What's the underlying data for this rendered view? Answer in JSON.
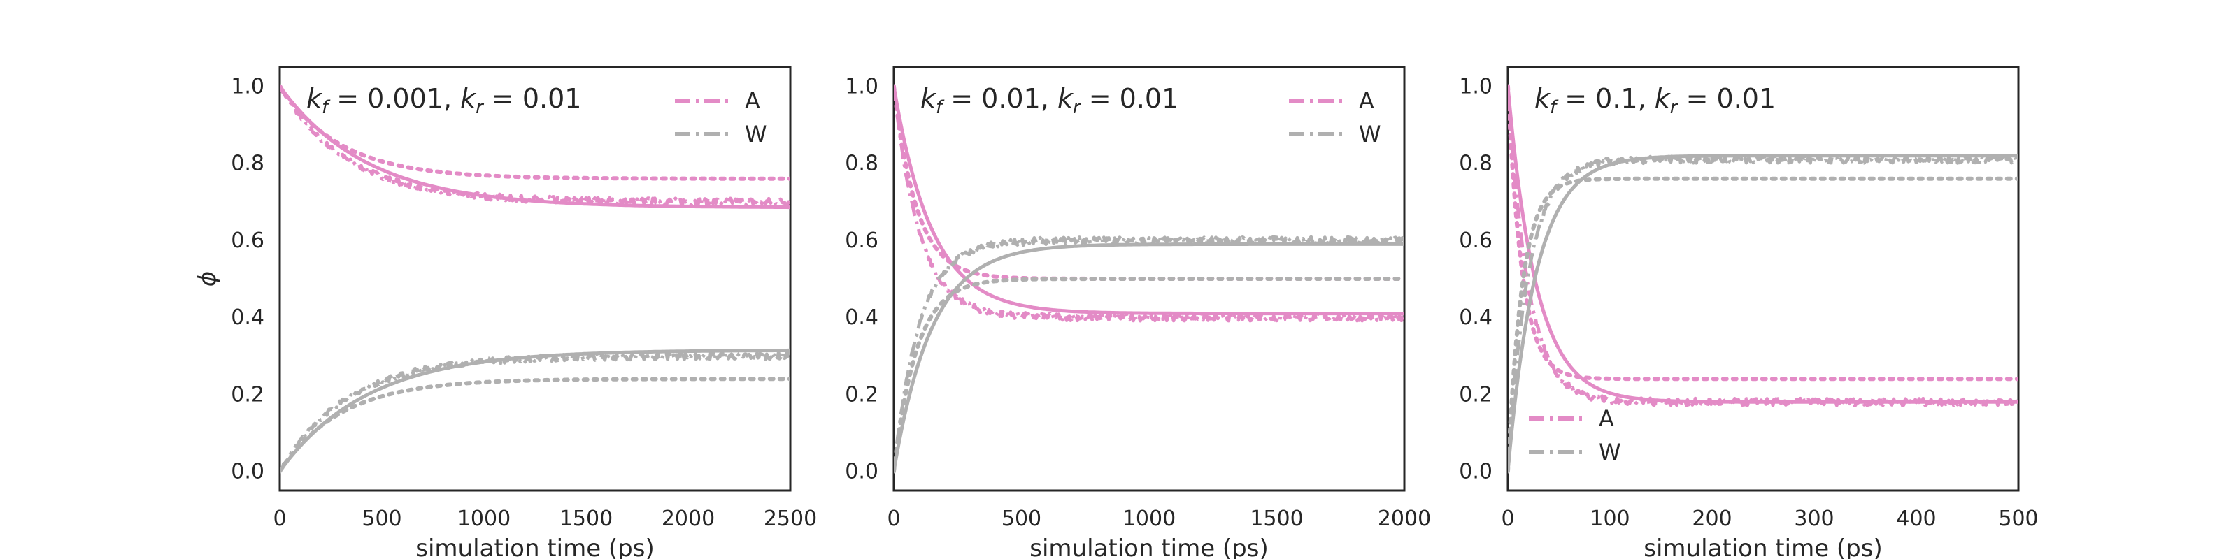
{
  "colors": {
    "A": "#e38bc6",
    "W": "#b0b0b0",
    "frame": "#262626",
    "background": "#ffffff"
  },
  "chart_data": [
    {
      "type": "line",
      "annotation": {
        "kf": "0.001",
        "kr": "0.01"
      },
      "xlabel": "simulation time (ps)",
      "ylabel": "ϕ",
      "xlim": [
        0,
        2500
      ],
      "ylim": [
        -0.05,
        1.05
      ],
      "xticks": [
        0,
        500,
        1000,
        1500,
        2000,
        2500
      ],
      "yticks": [
        0.0,
        0.2,
        0.4,
        0.6,
        0.8,
        1.0
      ],
      "xtick_labels": [
        "0",
        "500",
        "1000",
        "1500",
        "2000",
        "2500"
      ],
      "ytick_labels": [
        "0.0",
        "0.2",
        "0.4",
        "0.6",
        "0.8",
        "1.0"
      ],
      "legend": {
        "position": "top-right",
        "entries": [
          "A",
          "W"
        ]
      },
      "grid": false,
      "curves": {
        "A": {
          "color": "A",
          "start": 1.0,
          "solid_plateau": 0.685,
          "solid_tau": 430,
          "dashdot_plateau": 0.7,
          "dashdot_tau": 330,
          "dotted_value": 0.76,
          "dotted_tau": 300,
          "dotted_start": 600
        },
        "W": {
          "color": "W",
          "start": 0.0,
          "solid_plateau": 0.315,
          "solid_tau": 430,
          "dashdot_plateau": 0.3,
          "dashdot_tau": 330,
          "dotted_value": 0.24,
          "dotted_tau": 300,
          "dotted_start": 600
        }
      }
    },
    {
      "type": "line",
      "annotation": {
        "kf": "0.01",
        "kr": "0.01"
      },
      "xlabel": "simulation time (ps)",
      "ylabel": "",
      "xlim": [
        0,
        2000
      ],
      "ylim": [
        -0.05,
        1.05
      ],
      "xticks": [
        0,
        500,
        1000,
        1500,
        2000
      ],
      "yticks": [
        0.0,
        0.2,
        0.4,
        0.6,
        0.8,
        1.0
      ],
      "xtick_labels": [
        "0",
        "500",
        "1000",
        "1500",
        "2000"
      ],
      "ytick_labels": [
        "0.0",
        "0.2",
        "0.4",
        "0.6",
        "0.8",
        "1.0"
      ],
      "legend": {
        "position": "top-right",
        "entries": [
          "A",
          "W"
        ]
      },
      "grid": false,
      "curves": {
        "A": {
          "color": "A",
          "start": 1.0,
          "solid_plateau": 0.41,
          "solid_tau": 150,
          "dashdot_plateau": 0.4,
          "dashdot_tau": 100,
          "dotted_value": 0.5,
          "dotted_tau": 90,
          "dotted_start": 270
        },
        "W": {
          "color": "W",
          "start": 0.0,
          "solid_plateau": 0.59,
          "solid_tau": 150,
          "dashdot_plateau": 0.6,
          "dashdot_tau": 100,
          "dotted_value": 0.5,
          "dotted_tau": 90,
          "dotted_start": 270
        }
      }
    },
    {
      "type": "line",
      "annotation": {
        "kf": "0.1",
        "kr": "0.01"
      },
      "xlabel": "simulation time (ps)",
      "ylabel": "",
      "xlim": [
        0,
        500
      ],
      "ylim": [
        -0.05,
        1.05
      ],
      "xticks": [
        0,
        100,
        200,
        300,
        400,
        500
      ],
      "yticks": [
        0.0,
        0.2,
        0.4,
        0.6,
        0.8,
        1.0
      ],
      "xtick_labels": [
        "0",
        "100",
        "200",
        "300",
        "400",
        "500"
      ],
      "ytick_labels": [
        "0.0",
        "0.2",
        "0.4",
        "0.6",
        "0.8",
        "1.0"
      ],
      "legend": {
        "position": "bottom-left",
        "entries": [
          "A",
          "W"
        ]
      },
      "grid": false,
      "curves": {
        "A": {
          "color": "A",
          "start": 1.0,
          "solid_plateau": 0.18,
          "solid_tau": 28,
          "dashdot_plateau": 0.18,
          "dashdot_tau": 20,
          "dotted_value": 0.24,
          "dotted_tau": 14,
          "dotted_start": 50
        },
        "W": {
          "color": "W",
          "start": 0.0,
          "solid_plateau": 0.82,
          "solid_tau": 28,
          "dashdot_plateau": 0.81,
          "dashdot_tau": 20,
          "dotted_value": 0.76,
          "dotted_tau": 14,
          "dotted_start": 50
        }
      }
    }
  ]
}
